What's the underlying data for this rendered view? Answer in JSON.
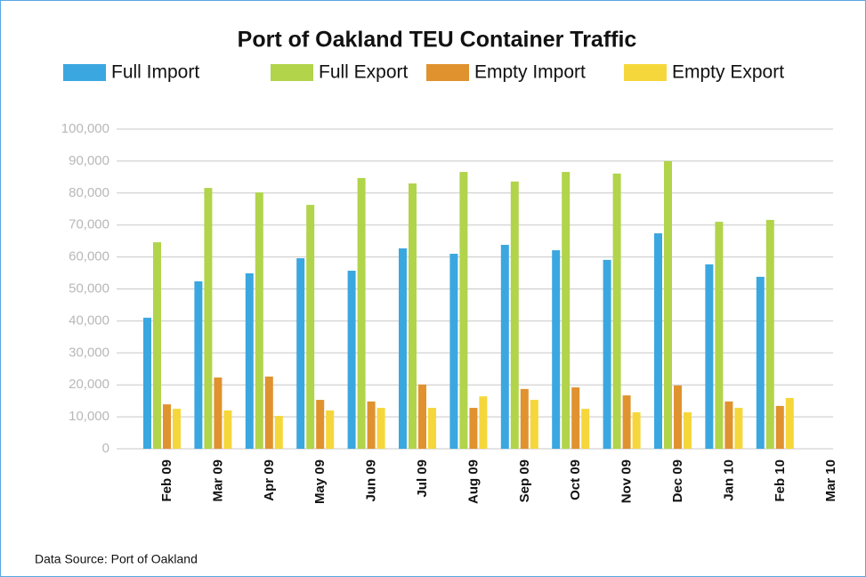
{
  "chart_data": {
    "type": "bar",
    "title": "Port of Oakland TEU Container Traffic",
    "source": "Data Source: Port of Oakland",
    "categories": [
      "Feb 09",
      "Mar 09",
      "Apr 09",
      "May 09",
      "Jun 09",
      "Jul 09",
      "Aug 09",
      "Sep 09",
      "Oct 09",
      "Nov 09",
      "Dec 09",
      "Jan 10",
      "Feb 10",
      "Mar 10"
    ],
    "series": [
      {
        "name": "Full Import",
        "color": "#3ba7e0",
        "values": [
          41000,
          52400,
          54900,
          59600,
          55700,
          62700,
          61000,
          63800,
          62100,
          59100,
          67400,
          57700,
          53800,
          null
        ]
      },
      {
        "name": "Full Export",
        "color": "#b1d44b",
        "values": [
          64600,
          81600,
          80200,
          76300,
          84700,
          83000,
          86600,
          83600,
          86600,
          86100,
          90000,
          71000,
          71600,
          null
        ]
      },
      {
        "name": "Empty Import",
        "color": "#e0922f",
        "values": [
          13900,
          22300,
          22600,
          15300,
          14800,
          20100,
          12800,
          18700,
          19200,
          16700,
          19800,
          14800,
          13400,
          null
        ]
      },
      {
        "name": "Empty Export",
        "color": "#f5d73b",
        "values": [
          12500,
          12000,
          10300,
          12000,
          12800,
          12800,
          16400,
          15300,
          12500,
          11400,
          11400,
          12800,
          15900,
          null
        ]
      }
    ],
    "ylim": [
      0,
      100000
    ],
    "yticks": [
      0,
      {
        "value": 10000,
        "label": "10,000"
      },
      {
        "value": 20000,
        "label": "20,000"
      },
      {
        "value": 30000,
        "label": "30,000"
      },
      {
        "value": 40000,
        "label": "40,000"
      },
      {
        "value": 50000,
        "label": "50,000"
      },
      {
        "value": 60000,
        "label": "60,000"
      },
      {
        "value": 70000,
        "label": "70,000"
      },
      {
        "value": 80000,
        "label": "80,000"
      },
      {
        "value": 90000,
        "label": "90,000"
      },
      {
        "value": 100000,
        "label": "100,000"
      }
    ],
    "grid": true
  }
}
